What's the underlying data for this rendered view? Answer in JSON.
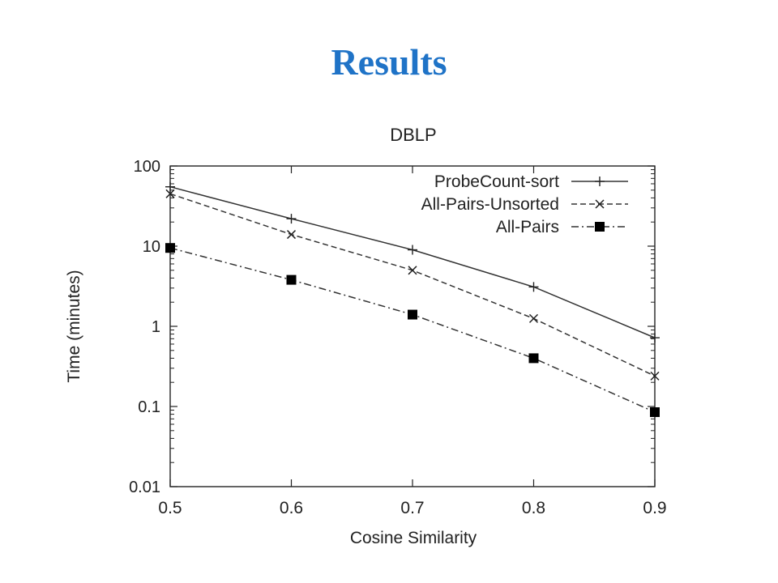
{
  "slide": {
    "title": "Results"
  },
  "chart_data": {
    "type": "line",
    "title": "DBLP",
    "xlabel": "Cosine Similarity",
    "ylabel": "Time (minutes)",
    "x": [
      0.5,
      0.6,
      0.7,
      0.8,
      0.9
    ],
    "xlim": [
      0.5,
      0.9
    ],
    "ylim": [
      0.01,
      100
    ],
    "yscale": "log",
    "xticks": [
      "0.5",
      "0.6",
      "0.7",
      "0.8",
      "0.9"
    ],
    "yticks": [
      "0.01",
      "0.1",
      "1",
      "10",
      "100"
    ],
    "grid": false,
    "legend_position": "top-right",
    "series": [
      {
        "name": "ProbeCount-sort",
        "values": [
          55,
          22,
          9,
          3.1,
          0.72
        ],
        "line_style": "solid",
        "marker": "plus",
        "color": "#333333"
      },
      {
        "name": "All-Pairs-Unsorted",
        "values": [
          45,
          14,
          5,
          1.25,
          0.24
        ],
        "line_style": "dashed",
        "marker": "cross",
        "color": "#333333"
      },
      {
        "name": "All-Pairs",
        "values": [
          9.5,
          3.8,
          1.4,
          0.4,
          0.085
        ],
        "line_style": "dashdot",
        "marker": "filled-square",
        "color": "#333333"
      }
    ]
  }
}
